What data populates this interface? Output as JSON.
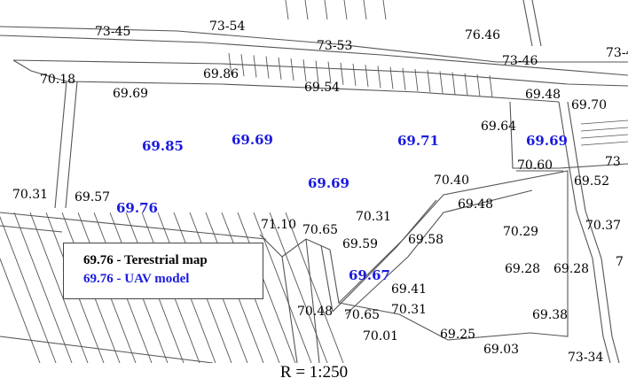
{
  "colors": {
    "terrestrial": "#000000",
    "uav": "#1a1adf",
    "lines": "#555555"
  },
  "terrestrial_labels": [
    "73-45",
    "73-54",
    "73-53",
    "76.46",
    "73-46",
    "73-4",
    "70.18",
    "69.86",
    "69.69",
    "69.54",
    "69.48",
    "69.70",
    "69.64",
    "70.60",
    "73",
    "69.52",
    "70.31",
    "69.57",
    "70.40",
    "69.48",
    "71.10",
    "70.65",
    "70.31",
    "69.59",
    "69.58",
    "70.29",
    "70.37",
    "69.28",
    "69.28",
    "7",
    "69.41",
    "70.48",
    "70.65",
    "70.31",
    "69.38",
    "70.01",
    "69.25",
    "69.03",
    "73-34"
  ],
  "uav_labels": [
    "69.85",
    "69.69",
    "69.71",
    "69.69",
    "69.69",
    "69.76",
    "69.67"
  ],
  "legend": {
    "terrestrial": "69.76 - Terestrial map",
    "uav": "69.76 - UAV model"
  },
  "scale": "R = 1:250"
}
